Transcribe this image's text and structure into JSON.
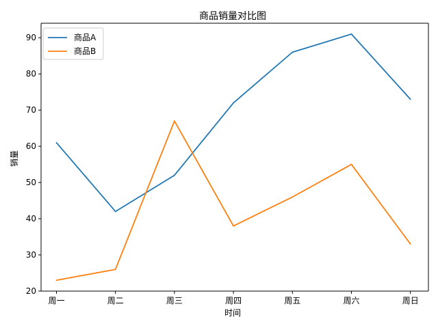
{
  "chart_data": {
    "type": "line",
    "title": "商品销量对比图",
    "xlabel": "时间",
    "ylabel": "销量",
    "categories": [
      "周一",
      "周二",
      "周三",
      "周四",
      "周五",
      "周六",
      "周日"
    ],
    "ylim": [
      20,
      94
    ],
    "yticks": [
      20,
      30,
      40,
      50,
      60,
      70,
      80,
      90
    ],
    "grid": false,
    "legend_position": "top-left",
    "series": [
      {
        "name": "商品A",
        "color": "#1f77b4",
        "values": [
          61,
          42,
          52,
          72,
          86,
          91,
          73
        ]
      },
      {
        "name": "商品B",
        "color": "#ff7f0e",
        "values": [
          23,
          26,
          67,
          38,
          46,
          55,
          33
        ]
      }
    ]
  }
}
